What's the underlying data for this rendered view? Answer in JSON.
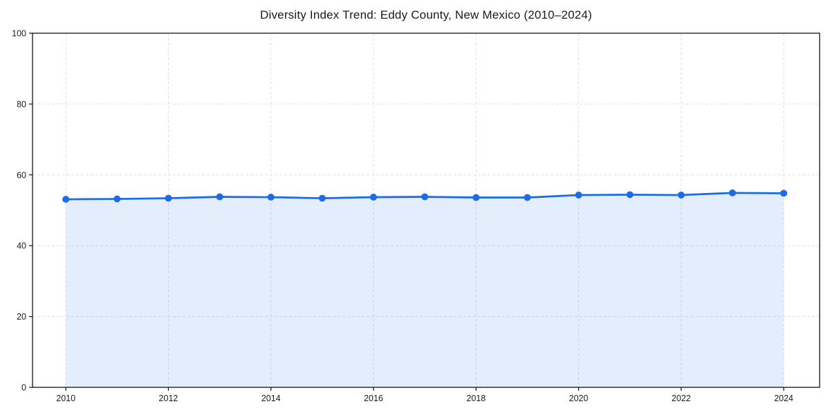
{
  "title": "Diversity Index Trend: Eddy County, New Mexico (2010–2024)",
  "colors": {
    "line": "#1b6ce6",
    "marker": "#1b6ce6",
    "area_fill": "rgba(27,108,230,0.12)",
    "grid": "#e0e0e0",
    "axis": "#111111",
    "text": "#1a1a1a",
    "background": "#ffffff"
  },
  "chart_data": {
    "type": "line",
    "title": "Diversity Index Trend: Eddy County, New Mexico (2010–2024)",
    "xlabel": "",
    "ylabel": "",
    "x": [
      2010,
      2011,
      2012,
      2013,
      2014,
      2015,
      2016,
      2017,
      2018,
      2019,
      2020,
      2021,
      2022,
      2023,
      2024
    ],
    "series": [
      {
        "name": "Diversity Index",
        "values": [
          53.1,
          53.2,
          53.4,
          53.8,
          53.7,
          53.4,
          53.7,
          53.8,
          53.6,
          53.6,
          54.3,
          54.4,
          54.3,
          54.9,
          54.8
        ]
      }
    ],
    "xlim": [
      2009.35,
      2024.7
    ],
    "ylim": [
      0,
      100
    ],
    "xticks": [
      2010,
      2012,
      2014,
      2016,
      2018,
      2020,
      2022,
      2024
    ],
    "yticks": [
      0,
      20,
      40,
      60,
      80,
      100
    ],
    "grid": true,
    "grid_style": "dashed",
    "legend": false,
    "area_fill": true,
    "marker": "circle",
    "line_width": 2.8,
    "marker_radius": 5
  }
}
